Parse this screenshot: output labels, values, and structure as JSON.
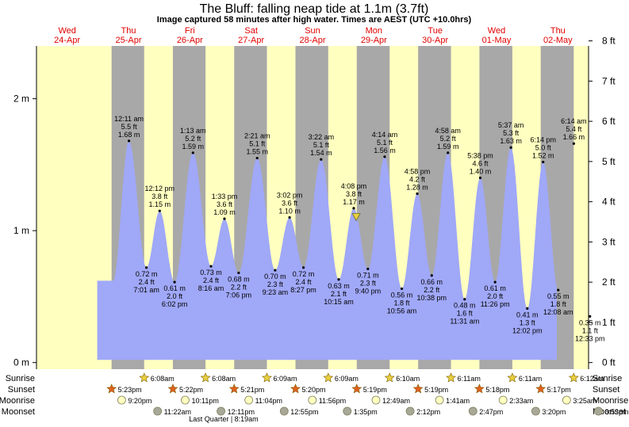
{
  "chart_data": {
    "type": "area",
    "title": "The Bluff: falling  neap tide at 1.1m (3.7ft)",
    "subtitle": "Image captured 58 minutes after high water. Times are AEST (UTC +10.0hrs)",
    "days": [
      {
        "dow": "Wed",
        "date": "24-Apr"
      },
      {
        "dow": "Thu",
        "date": "25-Apr"
      },
      {
        "dow": "Fri",
        "date": "26-Apr"
      },
      {
        "dow": "Sat",
        "date": "27-Apr"
      },
      {
        "dow": "Sun",
        "date": "28-Apr"
      },
      {
        "dow": "Mon",
        "date": "29-Apr"
      },
      {
        "dow": "Tue",
        "date": "30-Apr"
      },
      {
        "dow": "Wed",
        "date": "01-May"
      },
      {
        "dow": "Thu",
        "date": "02-May"
      }
    ],
    "y_left_ticks": [
      {
        "value": 0,
        "label": "0 m"
      },
      {
        "value": 1,
        "label": "1 m"
      },
      {
        "value": 2,
        "label": "2 m"
      }
    ],
    "y_right_ticks": [
      {
        "value": 0,
        "label": "0 ft"
      },
      {
        "value": 1,
        "label": "1 ft"
      },
      {
        "value": 2,
        "label": "2 ft"
      },
      {
        "value": 3,
        "label": "3 ft"
      },
      {
        "value": 4,
        "label": "4 ft"
      },
      {
        "value": 5,
        "label": "5 ft"
      },
      {
        "value": 6,
        "label": "6 ft"
      },
      {
        "value": 7,
        "label": "7 ft"
      },
      {
        "value": 8,
        "label": "8 ft"
      }
    ],
    "ylim_m": [
      -0.05,
      2.4
    ],
    "xlim_hours": [
      -12,
      204
    ],
    "tides": [
      {
        "t": 24.18,
        "v": 1.68,
        "kind": "high",
        "time": "12:11 am",
        "ft": "5.5 ft",
        "m": "1.68 m"
      },
      {
        "t": 31.02,
        "v": 0.72,
        "kind": "low",
        "time": "7:01 am",
        "ft": "2.4 ft",
        "m": "0.72 m"
      },
      {
        "t": 36.2,
        "v": 1.15,
        "kind": "high",
        "time": "12:12 pm",
        "ft": "3.8 ft",
        "m": "1.15 m"
      },
      {
        "t": 42.03,
        "v": 0.61,
        "kind": "low",
        "time": "6:02 pm",
        "ft": "2.0 ft",
        "m": "0.61 m"
      },
      {
        "t": 49.22,
        "v": 1.59,
        "kind": "high",
        "time": "1:13 am",
        "ft": "5.2 ft",
        "m": "1.59 m"
      },
      {
        "t": 56.27,
        "v": 0.73,
        "kind": "low",
        "time": "8:16 am",
        "ft": "2.4 ft",
        "m": "0.73 m"
      },
      {
        "t": 61.55,
        "v": 1.09,
        "kind": "high",
        "time": "1:33 pm",
        "ft": "3.6 ft",
        "m": "1.09 m"
      },
      {
        "t": 67.1,
        "v": 0.68,
        "kind": "low",
        "time": "7:06 pm",
        "ft": "2.2 ft",
        "m": "0.68 m"
      },
      {
        "t": 74.35,
        "v": 1.55,
        "kind": "high",
        "time": "2:21 am",
        "ft": "5.1 ft",
        "m": "1.55 m"
      },
      {
        "t": 81.38,
        "v": 0.7,
        "kind": "low",
        "time": "9:23 am",
        "ft": "2.3 ft",
        "m": "0.70 m"
      },
      {
        "t": 87.03,
        "v": 1.1,
        "kind": "high",
        "time": "3:02 pm",
        "ft": "3.6 ft",
        "m": "1.10 m"
      },
      {
        "t": 92.45,
        "v": 0.72,
        "kind": "low",
        "time": "8:27 pm",
        "ft": "2.4 ft",
        "m": "0.72 m"
      },
      {
        "t": 99.37,
        "v": 1.54,
        "kind": "high",
        "time": "3:22 am",
        "ft": "5.1 ft",
        "m": "1.54 m"
      },
      {
        "t": 106.25,
        "v": 0.63,
        "kind": "low",
        "time": "10:15 am",
        "ft": "2.1 ft",
        "m": "0.63 m"
      },
      {
        "t": 112.13,
        "v": 1.17,
        "kind": "high",
        "time": "4:08 pm",
        "ft": "3.8 ft",
        "m": "1.17 m"
      },
      {
        "t": 117.67,
        "v": 0.71,
        "kind": "low",
        "time": "9:40 pm",
        "ft": "2.3 ft",
        "m": "0.71 m"
      },
      {
        "t": 124.23,
        "v": 1.56,
        "kind": "high",
        "time": "4:14 am",
        "ft": "5.1 ft",
        "m": "1.56 m"
      },
      {
        "t": 130.93,
        "v": 0.56,
        "kind": "low",
        "time": "10:56 am",
        "ft": "1.8 ft",
        "m": "0.56 m"
      },
      {
        "t": 136.97,
        "v": 1.28,
        "kind": "high",
        "time": "4:58 pm",
        "ft": "4.2 ft",
        "m": "1.28 m"
      },
      {
        "t": 142.63,
        "v": 0.66,
        "kind": "low",
        "time": "10:38 pm",
        "ft": "2.2 ft",
        "m": "0.66 m"
      },
      {
        "t": 148.97,
        "v": 1.59,
        "kind": "high",
        "time": "4:58 am",
        "ft": "5.2 ft",
        "m": "1.59 m"
      },
      {
        "t": 155.52,
        "v": 0.48,
        "kind": "low",
        "time": "11:31 am",
        "ft": "1.6 ft",
        "m": "0.48 m"
      },
      {
        "t": 161.63,
        "v": 1.4,
        "kind": "high",
        "time": "5:38 pm",
        "ft": "4.6 ft",
        "m": "1.40 m"
      },
      {
        "t": 167.43,
        "v": 0.61,
        "kind": "low",
        "time": "11:26 pm",
        "ft": "2.0 ft",
        "m": "0.61 m"
      },
      {
        "t": 173.62,
        "v": 1.63,
        "kind": "high",
        "time": "5:37 am",
        "ft": "5.3 ft",
        "m": "1.63 m"
      },
      {
        "t": 180.03,
        "v": 0.41,
        "kind": "low",
        "time": "12:02 pm",
        "ft": "1.3 ft",
        "m": "0.41 m"
      },
      {
        "t": 186.23,
        "v": 1.52,
        "kind": "high",
        "time": "6:14 pm",
        "ft": "5.0 ft",
        "m": "1.52 m"
      },
      {
        "t": 192.13,
        "v": 0.55,
        "kind": "low",
        "time": "12:08 am",
        "ft": "1.8 ft",
        "m": "0.55 m"
      },
      {
        "t": 198.23,
        "v": 1.66,
        "kind": "high",
        "time": "6:14 am",
        "ft": "5.4 ft",
        "m": "1.66 m"
      },
      {
        "t": 204.55,
        "v": 0.35,
        "kind": "low",
        "time": "12:33 pm",
        "ft": "1.1 ft",
        "m": "0.35 m"
      }
    ],
    "current": {
      "t": 113.1,
      "v": 1.1
    },
    "sunrise": [
      {
        "t": 30.13,
        "label": "6:08am"
      },
      {
        "t": 54.13,
        "label": "6:08am"
      },
      {
        "t": 78.15,
        "label": "6:09am"
      },
      {
        "t": 102.15,
        "label": "6:09am"
      },
      {
        "t": 126.17,
        "label": "6:10am"
      },
      {
        "t": 150.18,
        "label": "6:11am"
      },
      {
        "t": 174.18,
        "label": "6:11am"
      },
      {
        "t": 198.2,
        "label": "6:12am"
      }
    ],
    "sunset": [
      {
        "t": 17.38,
        "label": "5:23pm"
      },
      {
        "t": 41.37,
        "label": "5:22pm"
      },
      {
        "t": 65.35,
        "label": "5:21pm"
      },
      {
        "t": 89.33,
        "label": "5:20pm"
      },
      {
        "t": 113.32,
        "label": "5:19pm"
      },
      {
        "t": 137.32,
        "label": "5:19pm"
      },
      {
        "t": 161.3,
        "label": "5:18pm"
      },
      {
        "t": 185.28,
        "label": "5:17pm"
      }
    ],
    "moonrise": [
      {
        "t": 21.33,
        "label": "9:20pm"
      },
      {
        "t": 46.18,
        "label": "10:11pm"
      },
      {
        "t": 71.07,
        "label": "11:04pm"
      },
      {
        "t": 95.93,
        "label": "11:56pm"
      },
      {
        "t": 120.82,
        "label": "12:49am"
      },
      {
        "t": 145.68,
        "label": "1:41am"
      },
      {
        "t": 170.55,
        "label": "2:33am"
      },
      {
        "t": 195.42,
        "label": "3:25am"
      }
    ],
    "moonset": [
      {
        "t": 35.37,
        "label": "11:22am"
      },
      {
        "t": 60.18,
        "label": "12:11pm"
      },
      {
        "t": 84.92,
        "label": "12:55pm"
      },
      {
        "t": 109.58,
        "label": "1:35pm"
      },
      {
        "t": 134.2,
        "label": "2:12pm"
      },
      {
        "t": 158.78,
        "label": "2:47pm"
      },
      {
        "t": 183.33,
        "label": "3:20pm"
      },
      {
        "t": 207.88,
        "label": "3:53pm"
      }
    ],
    "row_labels": {
      "sunrise": "Sunrise",
      "sunset": "Sunset",
      "moonrise": "Moonrise",
      "moonset": "Moonset"
    },
    "moon_phase_note": "Last Quarter | 8:19am",
    "colors": {
      "day": "#ffffc0",
      "night": "#a8a8a8",
      "water": "#a0a8f8",
      "date_text": "#e00000",
      "sun_fill": "#e8d040",
      "sunset_fill": "#e06020",
      "moon_fill": "#ffffc0",
      "moonset_fill": "#a8a898",
      "current_marker": "#e8d040"
    }
  }
}
